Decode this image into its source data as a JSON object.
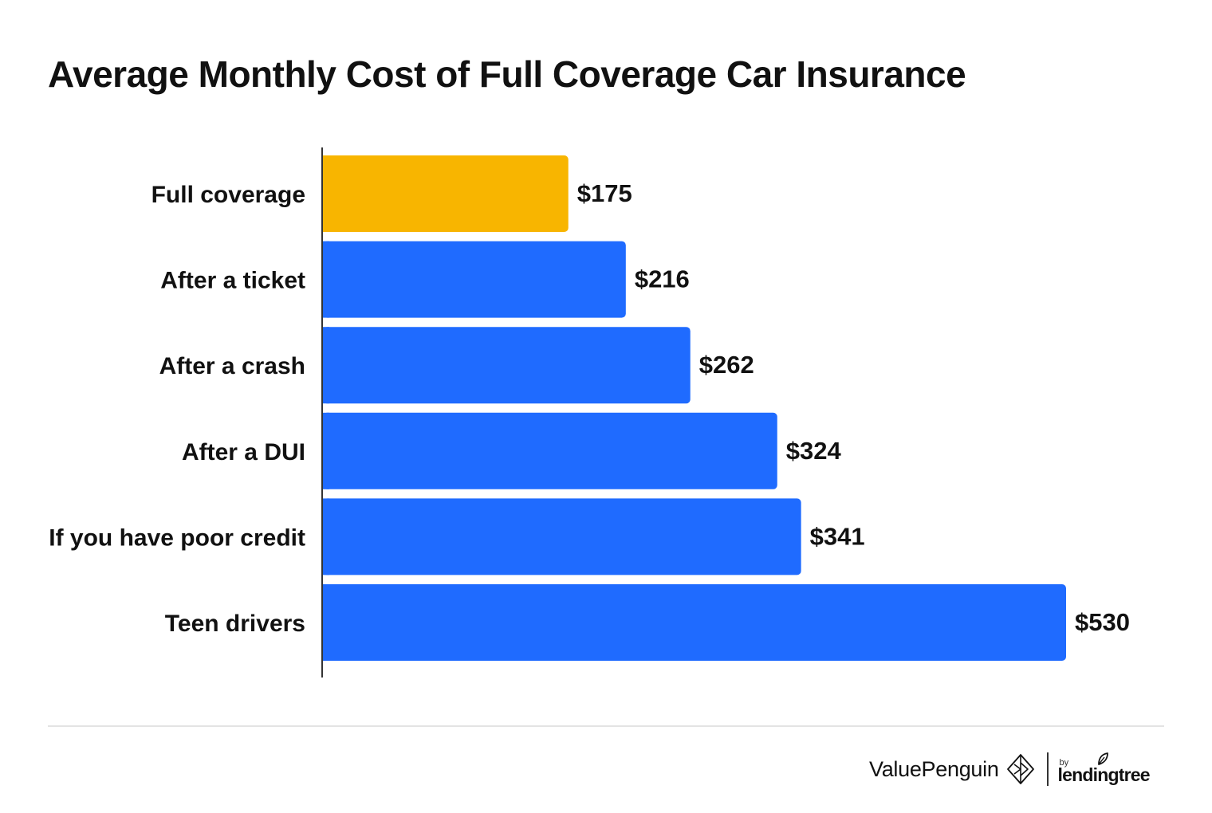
{
  "title": "Average Monthly Cost of Full Coverage Car Insurance",
  "chart_data": {
    "type": "bar",
    "orientation": "horizontal",
    "title": "Average Monthly Cost of Full Coverage Car Insurance",
    "categories": [
      "Full coverage",
      "After a ticket",
      "After a crash",
      "After a DUI",
      "If you have poor credit",
      "Teen drivers"
    ],
    "values": [
      175,
      216,
      262,
      324,
      341,
      530
    ],
    "value_labels": [
      "$175",
      "$216",
      "$262",
      "$324",
      "$341",
      "$530"
    ],
    "bar_colors": [
      "#f8b500",
      "#1f6bff",
      "#1f6bff",
      "#1f6bff",
      "#1f6bff",
      "#1f6bff"
    ],
    "xlim": [
      0,
      530
    ],
    "grid": false,
    "legend": "none"
  },
  "footer": {
    "brand_name": "ValuePenguin",
    "partner_by": "by",
    "partner_name": "lendingtree",
    "icons": [
      "penguin-logo-icon",
      "leaf-icon"
    ]
  },
  "colors": {
    "highlight": "#f8b500",
    "primary": "#1f6bff",
    "text": "#111111",
    "axis": "#333333",
    "divider": "#e3e3e3"
  }
}
